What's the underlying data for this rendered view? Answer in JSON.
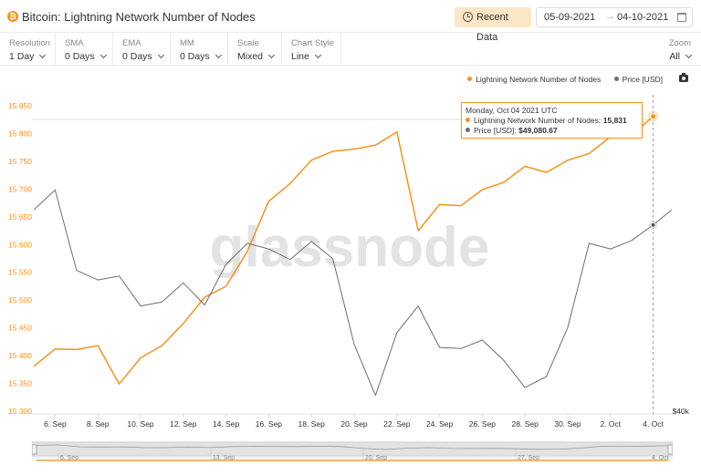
{
  "header": {
    "title": "Bitcoin: Lightning Network Number of Nodes",
    "recent_button": "Recent Data",
    "date_start": "05-09-2021",
    "date_arrow": "→",
    "date_end": "04-10-2021"
  },
  "controls": [
    {
      "label": "Resolution",
      "value": "1 Day"
    },
    {
      "label": "SMA",
      "value": "0 Days"
    },
    {
      "label": "EMA",
      "value": "0 Days"
    },
    {
      "label": "MM",
      "value": "0 Days"
    },
    {
      "label": "Scale",
      "value": "Mixed"
    },
    {
      "label": "Chart Style",
      "value": "Line"
    }
  ],
  "zoom": {
    "label": "Zoom",
    "value": "All"
  },
  "legend": [
    {
      "name": "Lightning Network Number of Nodes",
      "color": "#f7931a"
    },
    {
      "name": "Price [USD]",
      "color": "#6e6e6e"
    }
  ],
  "tooltip": {
    "date": "Monday, Oct 04 2021 UTC",
    "series1_label": "Lightning Network Number of Nodes:",
    "series1_value": "15,831",
    "series2_label": "Price [USD]:",
    "series2_value": "$49,080.67"
  },
  "watermark": "glassnode",
  "chart_data": {
    "type": "line",
    "title": "Bitcoin: Lightning Network Number of Nodes",
    "x": [
      "5 Sep",
      "6 Sep",
      "7 Sep",
      "8 Sep",
      "9 Sep",
      "10 Sep",
      "11 Sep",
      "12 Sep",
      "13 Sep",
      "14 Sep",
      "15 Sep",
      "16 Sep",
      "17 Sep",
      "18 Sep",
      "19 Sep",
      "20 Sep",
      "21 Sep",
      "22 Sep",
      "23 Sep",
      "24 Sep",
      "25 Sep",
      "26 Sep",
      "27 Sep",
      "28 Sep",
      "29 Sep",
      "30 Sep",
      "1 Oct",
      "2 Oct",
      "3 Oct",
      "4 Oct"
    ],
    "x_tick_labels": [
      "6. Sep",
      "8. Sep",
      "10. Sep",
      "12. Sep",
      "14. Sep",
      "16. Sep",
      "18. Sep",
      "20. Sep",
      "22. Sep",
      "24. Sep",
      "26. Sep",
      "28. Sep",
      "30. Sep",
      "2. Oct",
      "4. Oct"
    ],
    "navigator_labels": [
      "6. Sep",
      "13. Sep",
      "20. Sep",
      "27. Sep",
      "4. Oct"
    ],
    "series": [
      {
        "name": "Lightning Network Number of Nodes",
        "color": "#f7931a",
        "axis": "left",
        "values": [
          15381,
          15412,
          15411,
          15418,
          15349,
          15396,
          15418,
          15458,
          15505,
          15525,
          15588,
          15678,
          15710,
          15752,
          15768,
          15772,
          15779,
          15803,
          15625,
          15672,
          15670,
          15699,
          15712,
          15741,
          15730,
          15752,
          15764,
          15794,
          15797,
          15831
        ]
      },
      {
        "name": "Price [USD]",
        "color": "#6e6e6e",
        "axis": "right",
        "values": [
          49900,
          51000,
          46700,
          46200,
          46400,
          44900,
          45100,
          46050,
          44950,
          47000,
          48100,
          47800,
          47250,
          48200,
          47300,
          43050,
          40700,
          43600,
          44900,
          42900,
          42850,
          43250,
          42300,
          41050,
          41550,
          43850,
          48100,
          47800,
          48250,
          49081
        ]
      }
    ],
    "y_left": {
      "ticks": [
        15300,
        15350,
        15400,
        15450,
        15500,
        15550,
        15600,
        15650,
        15700,
        15750,
        15800,
        15850
      ],
      "tick_labels": [
        "15 300",
        "15 350",
        "15 400",
        "15 450",
        "15 500",
        "15 550",
        "15 600",
        "15 650",
        "15 700",
        "15 750",
        "15 800",
        "15 850"
      ],
      "range": [
        15300,
        15850
      ]
    },
    "y_right": {
      "ticks": [
        40000
      ],
      "tick_labels": [
        "$40k"
      ],
      "scale": "log",
      "range": [
        40000,
        52000
      ]
    },
    "grid": false,
    "legend_position": "top-right",
    "highlight_index": 29
  },
  "colors": {
    "accent": "#f7931a",
    "price": "#6e6e6e",
    "recent_bg": "#fbe6c5"
  }
}
